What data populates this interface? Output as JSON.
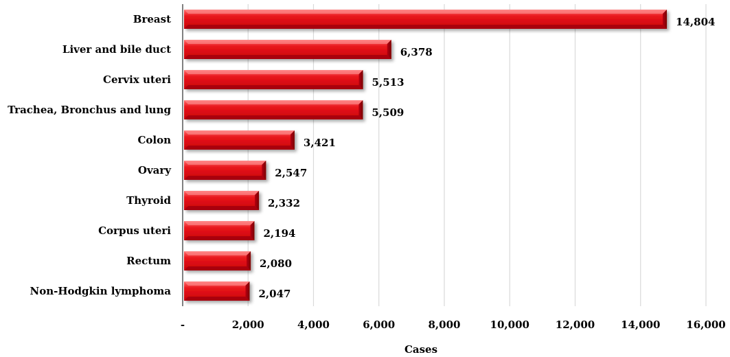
{
  "chart_data": {
    "type": "bar",
    "orientation": "horizontal",
    "categories": [
      "Breast",
      "Liver and bile duct",
      "Cervix uteri",
      "Trachea, Bronchus and lung",
      "Colon",
      "Ovary",
      "Thyroid",
      "Corpus uteri",
      "Rectum",
      "Non-Hodgkin lymphoma"
    ],
    "values": [
      14804,
      6378,
      5513,
      5509,
      3421,
      2547,
      2332,
      2194,
      2080,
      2047
    ],
    "value_labels": [
      "14,804",
      "6,378",
      "5,513",
      "5,509",
      "3,421",
      "2,547",
      "2,332",
      "2,194",
      "2,080",
      "2,047"
    ],
    "xlim": [
      0,
      16000
    ],
    "xticks": [
      0,
      2000,
      4000,
      6000,
      8000,
      10000,
      12000,
      14000,
      16000
    ],
    "xtick_labels": [
      "-",
      "2,000",
      "4,000",
      "6,000",
      "8,000",
      "10,000",
      "12,000",
      "14,000",
      "16,000"
    ],
    "xlabel": "Cases",
    "ylabel": "",
    "title": "",
    "grid": "vertical",
    "legend": "none",
    "bar_color": "#e8161b",
    "bar_highlight_color": "#ff6a6a",
    "bar_shadow_color": "#8a0005"
  }
}
